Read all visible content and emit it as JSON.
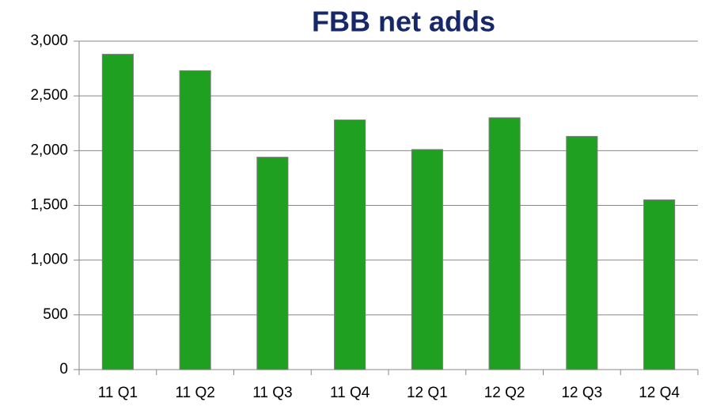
{
  "chart_data": {
    "type": "bar",
    "title": "FBB net adds",
    "categories": [
      "11 Q1",
      "11 Q2",
      "11 Q3",
      "11 Q4",
      "12 Q1",
      "12 Q2",
      "12 Q3",
      "12 Q4"
    ],
    "values": [
      2880,
      2730,
      1940,
      2280,
      2010,
      2300,
      2130,
      1550
    ],
    "color": "#20a020",
    "ylim": [
      0,
      3000
    ],
    "yticks": [
      0,
      500,
      {
        "value": 1000,
        "label": "1,000"
      },
      {
        "value": 1500,
        "label": "1,500"
      },
      {
        "value": 2000,
        "label": "2,000"
      },
      {
        "value": 2500,
        "label": "2,500"
      },
      {
        "value": 3000,
        "label": "3,000"
      }
    ],
    "grid": true
  }
}
